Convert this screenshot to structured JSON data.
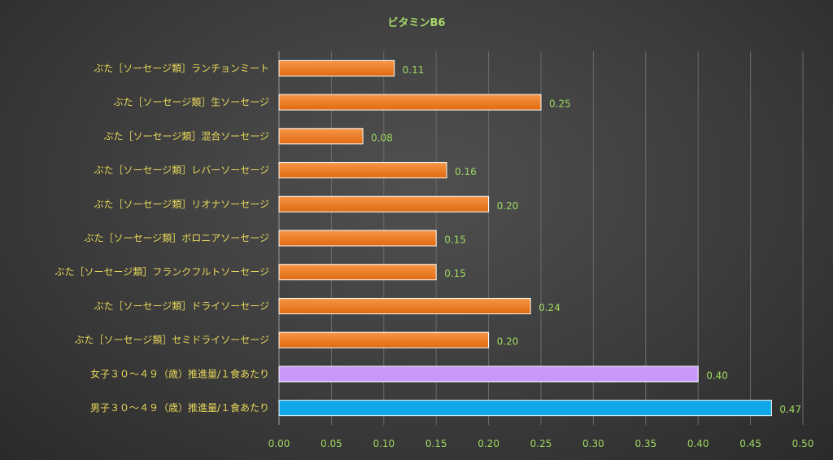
{
  "chart_data": {
    "type": "bar",
    "orientation": "horizontal",
    "title": "ビタミンB6",
    "categories": [
      "ぶた［ソーセージ類］ランチョンミート",
      "ぶた［ソーセージ類］生ソーセージ",
      "ぶた［ソーセージ類］混合ソーセージ",
      "ぶた［ソーセージ類］レバーソーセージ",
      "ぶた［ソーセージ類］リオナソーセージ",
      "ぶた［ソーセージ類］ボロニアソーセージ",
      "ぶた［ソーセージ類］フランクフルトソーセージ",
      "ぶた［ソーセージ類］ドライソーセージ",
      "ぶた［ソーセージ類］セミドライソーセージ",
      "女子３０～４９（歳）推進量/１食あたり",
      "男子３０～４９（歳）推進量/１食あたり"
    ],
    "values": [
      0.11,
      0.25,
      0.08,
      0.16,
      0.2,
      0.15,
      0.15,
      0.24,
      0.2,
      0.4,
      0.47
    ],
    "value_labels": [
      "0.11",
      "0.25",
      "0.08",
      "0.16",
      "0.20",
      "0.15",
      "0.15",
      "0.24",
      "0.20",
      "0.40",
      "0.47"
    ],
    "bar_colors": [
      "#f07820",
      "#f07820",
      "#f07820",
      "#f07820",
      "#f07820",
      "#f07820",
      "#f07820",
      "#f07820",
      "#f07820",
      "#c898f8",
      "#10a8e8"
    ],
    "xlim": [
      0,
      0.5
    ],
    "xticks": [
      "0.00",
      "0.05",
      "0.10",
      "0.15",
      "0.20",
      "0.25",
      "0.30",
      "0.35",
      "0.40",
      "0.45",
      "0.50"
    ],
    "xtick_values": [
      0,
      0.05,
      0.1,
      0.15,
      0.2,
      0.25,
      0.3,
      0.35,
      0.4,
      0.45,
      0.5
    ],
    "xlabel": "",
    "ylabel": "",
    "grid": true,
    "legend": "none"
  }
}
